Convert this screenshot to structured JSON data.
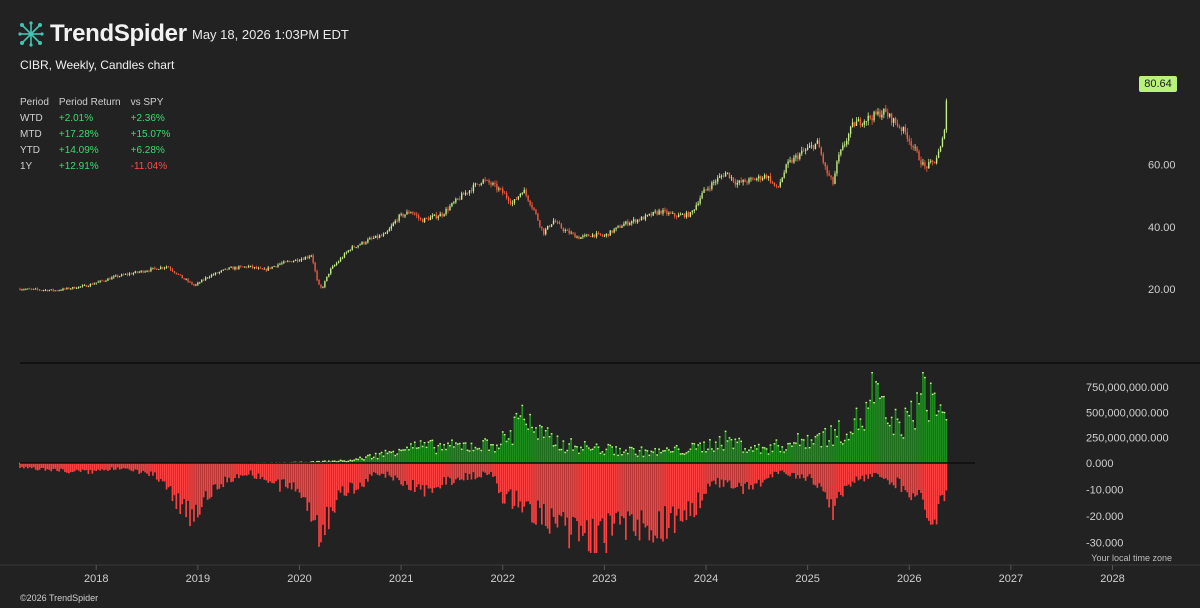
{
  "header": {
    "brand": "TrendSpider",
    "timestamp": "May 18, 2026 1:03PM EDT",
    "chart_title": "CIBR, Weekly, Candles chart"
  },
  "returns_table": {
    "headers": [
      "Period",
      "Period Return",
      "vs SPY"
    ],
    "rows": [
      {
        "period": "WTD",
        "ret": "+2.01%",
        "vs": "+2.36%"
      },
      {
        "period": "MTD",
        "ret": "+17.28%",
        "vs": "+15.07%"
      },
      {
        "period": "YTD",
        "ret": "+14.09%",
        "vs": "+6.28%"
      },
      {
        "period": "1Y",
        "ret": "+12.91%",
        "vs": "-11.04%"
      }
    ]
  },
  "price_badge": "80.64",
  "footer": "©2026 TrendSpider",
  "timezone_note": "Your local time zone",
  "colors": {
    "background": "#222222",
    "up": "#c6f08a",
    "down": "#ff5a3c",
    "volume_up": "#1e8e1e",
    "volume_down": "#ff4040",
    "badge": "#b8f27a"
  },
  "chart_data": [
    {
      "type": "candlestick",
      "symbol": "CIBR",
      "interval": "Weekly",
      "y_ticks": [
        "20.00",
        "40.00",
        "60.00"
      ],
      "ylim": [
        10,
        84
      ],
      "x_ticks": [
        "2018",
        "2019",
        "2020",
        "2021",
        "2022",
        "2023",
        "2024",
        "2025",
        "2026",
        "2027",
        "2028"
      ],
      "xlim": [
        2017.25,
        2028.3
      ],
      "last_price": 80.64,
      "series": [
        [
          2017.25,
          20.0
        ],
        [
          2017.6,
          19.5
        ],
        [
          2017.9,
          21.0
        ],
        [
          2018.2,
          24.0
        ],
        [
          2018.5,
          26.0
        ],
        [
          2018.7,
          27.3
        ],
        [
          2018.85,
          23.5
        ],
        [
          2018.97,
          21.0
        ],
        [
          2019.1,
          24.0
        ],
        [
          2019.3,
          26.5
        ],
        [
          2019.5,
          27.2
        ],
        [
          2019.65,
          26.0
        ],
        [
          2019.8,
          28.0
        ],
        [
          2020.05,
          30.0
        ],
        [
          2020.12,
          31.0
        ],
        [
          2020.18,
          21.5
        ],
        [
          2020.22,
          20.0
        ],
        [
          2020.3,
          26.0
        ],
        [
          2020.5,
          33.0
        ],
        [
          2020.7,
          36.0
        ],
        [
          2020.85,
          37.5
        ],
        [
          2020.97,
          43.0
        ],
        [
          2021.1,
          45.0
        ],
        [
          2021.2,
          42.0
        ],
        [
          2021.4,
          44.0
        ],
        [
          2021.6,
          50.0
        ],
        [
          2021.8,
          55.0
        ],
        [
          2021.9,
          53.5
        ],
        [
          2022.0,
          51.0
        ],
        [
          2022.1,
          47.5
        ],
        [
          2022.2,
          52.0
        ],
        [
          2022.3,
          46.0
        ],
        [
          2022.4,
          38.0
        ],
        [
          2022.5,
          42.0
        ],
        [
          2022.6,
          39.0
        ],
        [
          2022.75,
          36.5
        ],
        [
          2022.9,
          37.5
        ],
        [
          2023.0,
          37.0
        ],
        [
          2023.2,
          41.0
        ],
        [
          2023.4,
          43.0
        ],
        [
          2023.55,
          45.0
        ],
        [
          2023.7,
          43.5
        ],
        [
          2023.85,
          44.0
        ],
        [
          2023.97,
          51.0
        ],
        [
          2024.1,
          55.0
        ],
        [
          2024.2,
          57.5
        ],
        [
          2024.3,
          54.0
        ],
        [
          2024.45,
          55.0
        ],
        [
          2024.6,
          56.5
        ],
        [
          2024.7,
          52.0
        ],
        [
          2024.8,
          60.0
        ],
        [
          2024.95,
          64.0
        ],
        [
          2025.1,
          67.0
        ],
        [
          2025.18,
          58.0
        ],
        [
          2025.25,
          54.0
        ],
        [
          2025.3,
          62.0
        ],
        [
          2025.45,
          73.0
        ],
        [
          2025.6,
          75.0
        ],
        [
          2025.75,
          77.0
        ],
        [
          2025.85,
          74.0
        ],
        [
          2025.97,
          70.0
        ],
        [
          2026.05,
          65.0
        ],
        [
          2026.15,
          59.0
        ],
        [
          2026.25,
          61.0
        ],
        [
          2026.32,
          66.0
        ],
        [
          2026.38,
          80.64
        ]
      ]
    },
    {
      "type": "bar",
      "description_of_values": "signed histogram, up-weighted positive and negative sub-panel",
      "y_ticks": [
        "750,000,000.000",
        "500,000,000.000",
        "250,000,000.000",
        "0.000",
        "-10.000",
        "-20.000",
        "-30.000"
      ],
      "positive_range": [
        0,
        820000000
      ],
      "negative_range": [
        -31,
        0
      ],
      "positive_series": [
        [
          2017.25,
          2000000
        ],
        [
          2019.5,
          5000000
        ],
        [
          2020.0,
          10000000
        ],
        [
          2020.5,
          30000000
        ],
        [
          2020.9,
          120000000
        ],
        [
          2021.0,
          180000000
        ],
        [
          2021.5,
          180000000
        ],
        [
          2021.9,
          200000000
        ],
        [
          2022.1,
          300000000
        ],
        [
          2022.15,
          650000000
        ],
        [
          2022.3,
          340000000
        ],
        [
          2022.6,
          200000000
        ],
        [
          2023.0,
          150000000
        ],
        [
          2023.5,
          120000000
        ],
        [
          2023.9,
          160000000
        ],
        [
          2024.2,
          250000000
        ],
        [
          2024.5,
          150000000
        ],
        [
          2024.8,
          200000000
        ],
        [
          2025.0,
          260000000
        ],
        [
          2025.3,
          320000000
        ],
        [
          2025.6,
          520000000
        ],
        [
          2025.62,
          820000000
        ],
        [
          2025.8,
          420000000
        ],
        [
          2026.0,
          450000000
        ],
        [
          2026.15,
          800000000
        ],
        [
          2026.3,
          560000000
        ],
        [
          2026.38,
          620000000
        ]
      ],
      "negative_series": [
        [
          2017.25,
          -2
        ],
        [
          2017.9,
          -4
        ],
        [
          2018.3,
          -2
        ],
        [
          2018.6,
          -6
        ],
        [
          2018.8,
          -16
        ],
        [
          2018.95,
          -22
        ],
        [
          2019.2,
          -9
        ],
        [
          2019.5,
          -4
        ],
        [
          2019.8,
          -10
        ],
        [
          2020.0,
          -11
        ],
        [
          2020.15,
          -22
        ],
        [
          2020.2,
          -30
        ],
        [
          2020.4,
          -14
        ],
        [
          2020.8,
          -4
        ],
        [
          2021.2,
          -12
        ],
        [
          2021.6,
          -6
        ],
        [
          2021.9,
          -5
        ],
        [
          2022.0,
          -14
        ],
        [
          2022.3,
          -20
        ],
        [
          2022.45,
          -26
        ],
        [
          2022.7,
          -32
        ],
        [
          2022.95,
          -33
        ],
        [
          2023.2,
          -27
        ],
        [
          2023.5,
          -28
        ],
        [
          2023.8,
          -22
        ],
        [
          2024.1,
          -8
        ],
        [
          2024.4,
          -12
        ],
        [
          2024.7,
          -4
        ],
        [
          2025.0,
          -6
        ],
        [
          2025.2,
          -15
        ],
        [
          2025.25,
          -20
        ],
        [
          2025.4,
          -8
        ],
        [
          2025.7,
          -5
        ],
        [
          2025.9,
          -9
        ],
        [
          2026.1,
          -15
        ],
        [
          2026.2,
          -21
        ],
        [
          2026.3,
          -20
        ],
        [
          2026.38,
          -11
        ]
      ]
    }
  ]
}
